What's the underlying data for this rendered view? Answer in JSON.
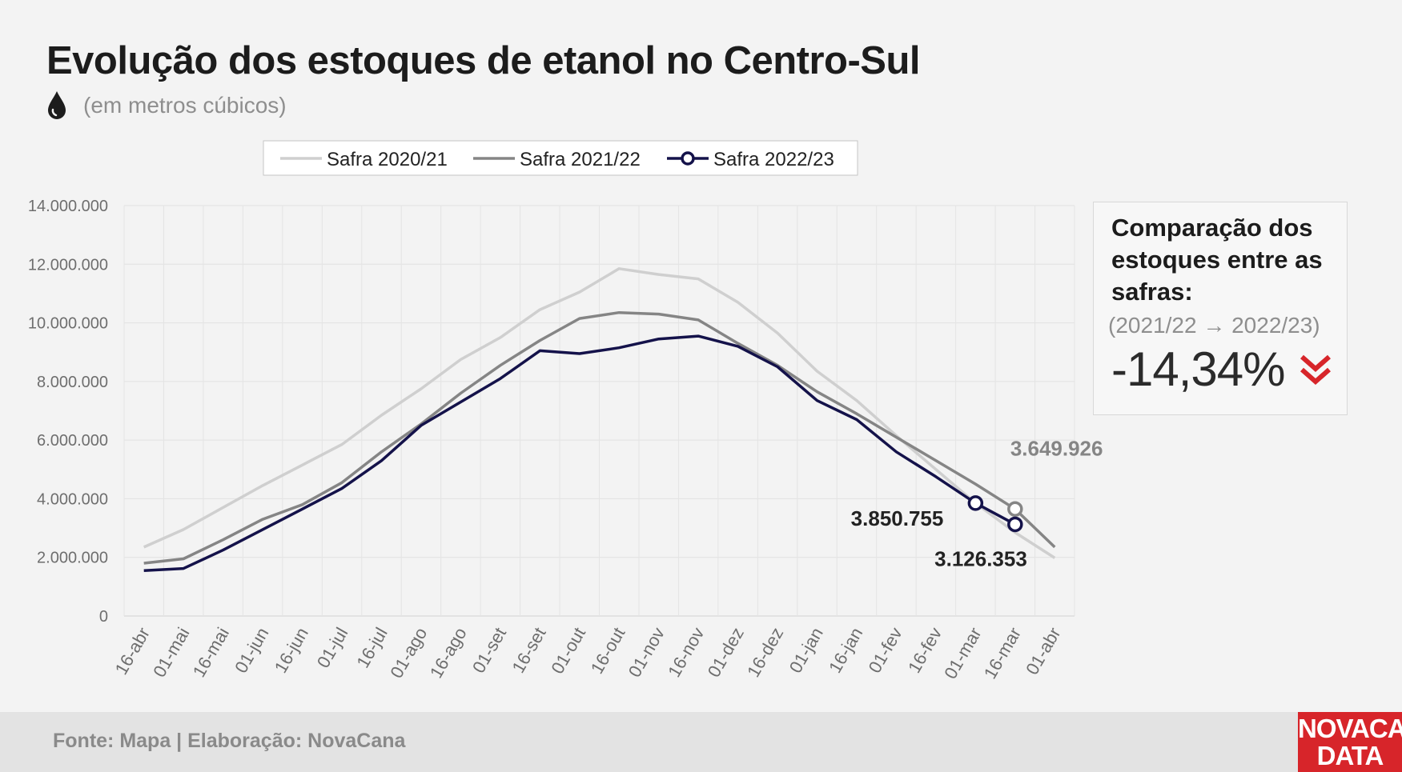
{
  "header": {
    "title": "Evolução dos estoques de etanol no Centro-Sul",
    "subtitle": "(em metros cúbicos)",
    "icon": "drop-icon"
  },
  "chart_data": {
    "type": "line",
    "categories": [
      "16-abr",
      "01-mai",
      "16-mai",
      "01-jun",
      "16-jun",
      "01-jul",
      "16-jul",
      "01-ago",
      "16-ago",
      "01-set",
      "16-set",
      "01-out",
      "16-out",
      "01-nov",
      "16-nov",
      "01-dez",
      "16-dez",
      "01-jan",
      "16-jan",
      "01-fev",
      "16-fev",
      "01-mar",
      "16-mar",
      "01-abr"
    ],
    "ylim": [
      0,
      14000000
    ],
    "yticks": [
      0,
      2000000,
      4000000,
      6000000,
      8000000,
      10000000,
      12000000,
      14000000
    ],
    "ytick_labels": [
      "0",
      "2.000.000",
      "4.000.000",
      "6.000.000",
      "8.000.000",
      "10.000.000",
      "12.000.000",
      "14.000.000"
    ],
    "grid": true,
    "legend_position": "top",
    "series": [
      {
        "name": "Safra 2020/21",
        "color": "#cfcfcf",
        "markers": false,
        "values": [
          2350000,
          2950000,
          3700000,
          4450000,
          5150000,
          5850000,
          6850000,
          7750000,
          8750000,
          9500000,
          10450000,
          11050000,
          11850000,
          11650000,
          11500000,
          10700000,
          9650000,
          8350000,
          7350000,
          6150000,
          5000000,
          3850000,
          2850000,
          1980000
        ]
      },
      {
        "name": "Safra 2021/22",
        "color": "#858585",
        "markers": false,
        "values": [
          1800000,
          1950000,
          2600000,
          3300000,
          3800000,
          4550000,
          5600000,
          6550000,
          7600000,
          8550000,
          9400000,
          10150000,
          10350000,
          10300000,
          10100000,
          9300000,
          8550000,
          7650000,
          6900000,
          6100000,
          5300000,
          4500000,
          3649926,
          2350000
        ]
      },
      {
        "name": "Safra 2022/23",
        "color": "#14124a",
        "markers": true,
        "values": [
          1550000,
          1620000,
          2250000,
          2950000,
          3650000,
          4350000,
          5300000,
          6500000,
          7300000,
          8100000,
          9050000,
          8950000,
          9150000,
          9450000,
          9550000,
          9200000,
          8500000,
          7350000,
          6700000,
          5600000,
          4750000,
          3850755,
          3126353,
          null
        ]
      }
    ],
    "annotations": [
      {
        "text": "3.649.926",
        "series": "Safra 2021/22",
        "category": "16-mar",
        "value": 3649926,
        "color": "#858585"
      },
      {
        "text": "3.850.755",
        "series": "Safra 2022/23",
        "category": "01-mar",
        "value": 3850755,
        "color": "#222222"
      },
      {
        "text": "3.126.353",
        "series": "Safra 2022/23",
        "category": "16-mar",
        "value": 3126353,
        "color": "#222222"
      }
    ]
  },
  "comparison": {
    "title": "Comparação dos estoques entre as safras:",
    "range": "(2021/22 → 2022/23)",
    "value": "-14,34%",
    "icon": "double-chevron-down-icon",
    "accent": "#d7252a"
  },
  "footer": {
    "source": "Fonte: Mapa | Elaboração: NovaCana",
    "logo_line1": "NOVACANA",
    "logo_line2": "DATA"
  }
}
